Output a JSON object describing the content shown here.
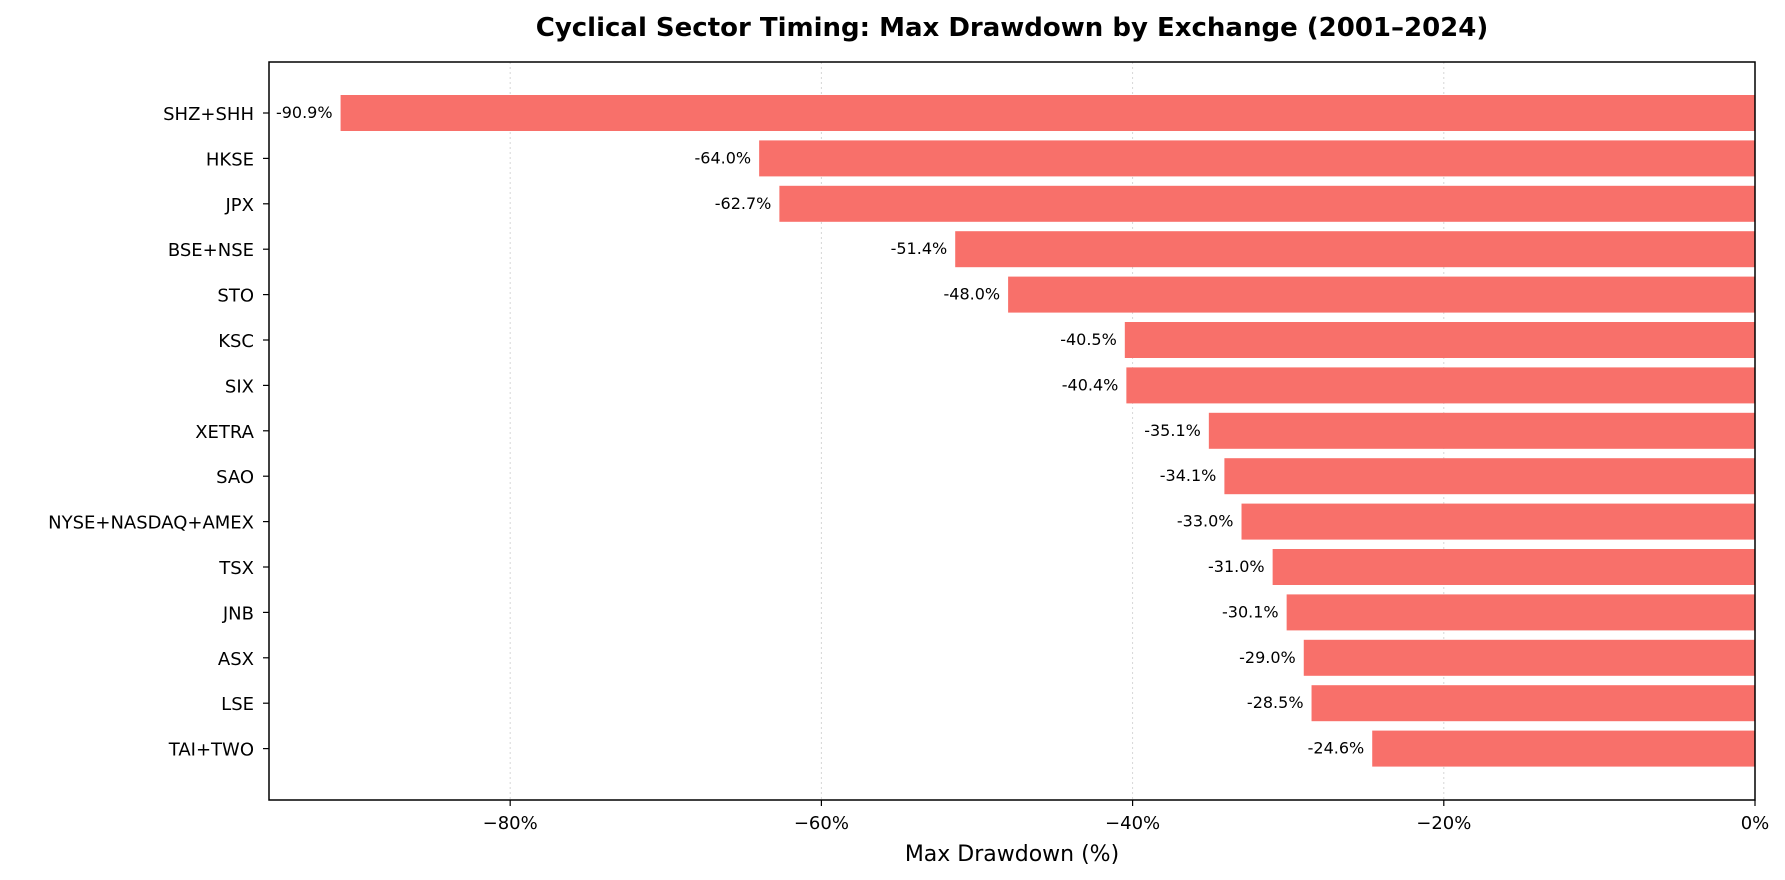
{
  "chart_data": {
    "type": "bar",
    "orientation": "horizontal",
    "title": "Cyclical Sector Timing: Max Drawdown by Exchange (2001–2024)",
    "xlabel": "Max Drawdown (%)",
    "ylabel": "",
    "xlim": [
      -95.5,
      0
    ],
    "xticks": [
      -80,
      -60,
      -40,
      -20,
      0
    ],
    "xtick_labels": [
      "−80%",
      "−60%",
      "−40%",
      "−20%",
      "0%"
    ],
    "grid": "x-dotted",
    "bar_color": "#f8706a",
    "categories": [
      "SHZ+SHH",
      "HKSE",
      "JPX",
      "BSE+NSE",
      "STO",
      "KSC",
      "SIX",
      "XETRA",
      "SAO",
      "NYSE+NASDAQ+AMEX",
      "TSX",
      "JNB",
      "ASX",
      "LSE",
      "TAI+TWO"
    ],
    "values": [
      -90.9,
      -64.0,
      -62.7,
      -51.4,
      -48.0,
      -40.5,
      -40.4,
      -35.1,
      -34.1,
      -33.0,
      -31.0,
      -30.1,
      -29.0,
      -28.5,
      -24.6
    ],
    "data_labels": [
      "-90.9%",
      "-64.0%",
      "-62.7%",
      "-51.4%",
      "-48.0%",
      "-40.5%",
      "-40.4%",
      "-35.1%",
      "-34.1%",
      "-33.0%",
      "-31.0%",
      "-30.1%",
      "-29.0%",
      "-28.5%",
      "-24.6%"
    ]
  }
}
